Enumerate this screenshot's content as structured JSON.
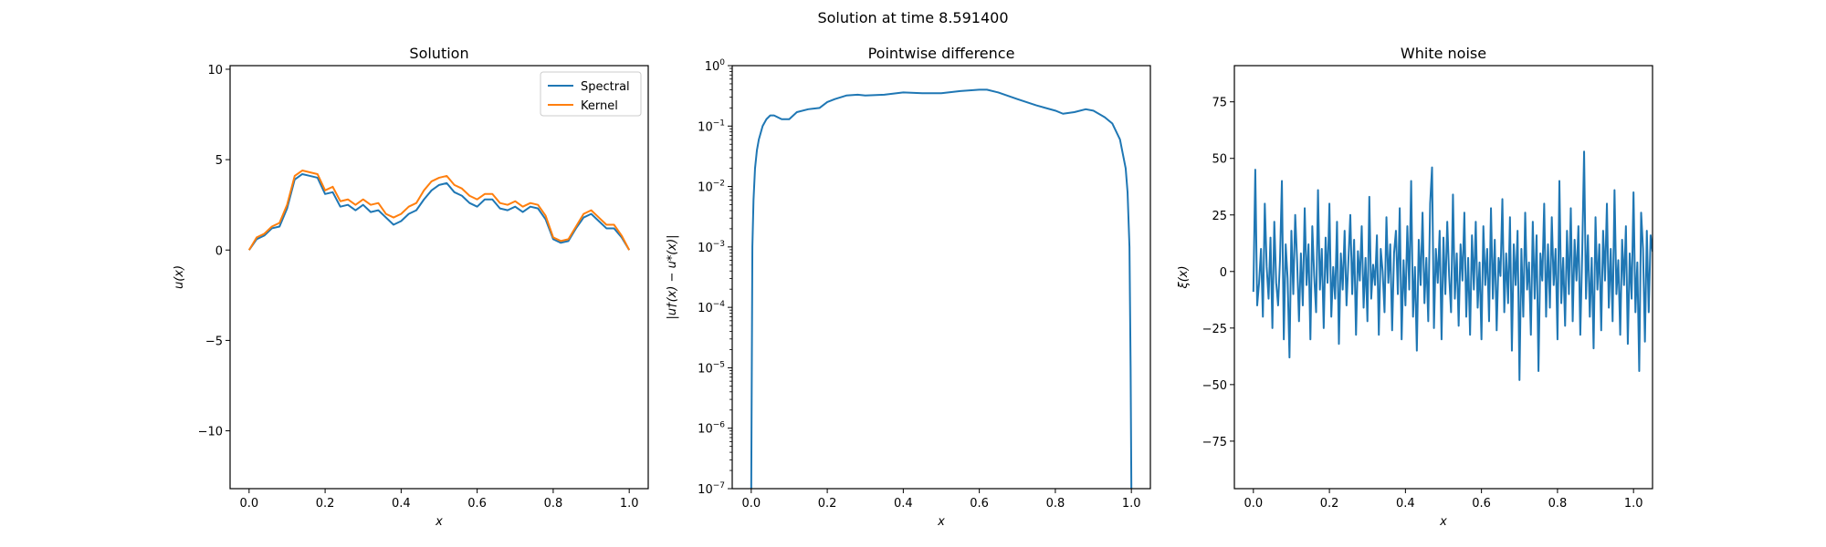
{
  "figure": {
    "suptitle": "Solution at time 8.591400"
  },
  "chart_data": [
    {
      "type": "line",
      "title": "Solution",
      "xlabel": "x",
      "ylabel": "u(x)",
      "xlim": [
        -0.05,
        1.05
      ],
      "ylim": [
        -13.2,
        10.2
      ],
      "xticks": [
        0.0,
        0.2,
        0.4,
        0.6,
        0.8,
        1.0
      ],
      "xtick_labels": [
        "0.0",
        "0.2",
        "0.4",
        "0.6",
        "0.8",
        "1.0"
      ],
      "yticks": [
        -10,
        -5,
        0,
        5,
        10
      ],
      "ytick_labels": [
        "−10",
        "−5",
        "0",
        "5",
        "10"
      ],
      "legend": {
        "loc": "upper right",
        "entries": [
          "Spectral",
          "Kernel"
        ]
      },
      "x": [
        0.0,
        0.02,
        0.04,
        0.06,
        0.08,
        0.1,
        0.12,
        0.14,
        0.16,
        0.18,
        0.2,
        0.22,
        0.24,
        0.26,
        0.28,
        0.3,
        0.32,
        0.34,
        0.36,
        0.38,
        0.4,
        0.42,
        0.44,
        0.46,
        0.48,
        0.5,
        0.52,
        0.54,
        0.56,
        0.58,
        0.6,
        0.62,
        0.64,
        0.66,
        0.68,
        0.7,
        0.72,
        0.74,
        0.76,
        0.78,
        0.8,
        0.82,
        0.84,
        0.86,
        0.88,
        0.9,
        0.92,
        0.94,
        0.96,
        0.98,
        1.0
      ],
      "series": [
        {
          "name": "Spectral",
          "color": "#1f77b4",
          "values": [
            0.0,
            0.6,
            0.8,
            1.2,
            1.3,
            2.3,
            3.9,
            4.2,
            4.1,
            4.0,
            3.1,
            3.2,
            2.4,
            2.5,
            2.2,
            2.5,
            2.1,
            2.2,
            1.8,
            1.4,
            1.6,
            2.0,
            2.2,
            2.8,
            3.3,
            3.6,
            3.7,
            3.2,
            3.0,
            2.6,
            2.4,
            2.8,
            2.8,
            2.3,
            2.2,
            2.4,
            2.1,
            2.4,
            2.3,
            1.7,
            0.6,
            0.4,
            0.5,
            1.2,
            1.8,
            2.0,
            1.6,
            1.2,
            1.2,
            0.7,
            0.0
          ]
        },
        {
          "name": "Kernel",
          "color": "#ff7f0e",
          "values": [
            0.0,
            0.7,
            0.9,
            1.3,
            1.5,
            2.5,
            4.1,
            4.4,
            4.3,
            4.2,
            3.3,
            3.5,
            2.7,
            2.8,
            2.5,
            2.8,
            2.5,
            2.6,
            2.0,
            1.8,
            2.0,
            2.4,
            2.6,
            3.3,
            3.8,
            4.0,
            4.1,
            3.6,
            3.4,
            3.0,
            2.8,
            3.1,
            3.1,
            2.6,
            2.5,
            2.7,
            2.4,
            2.6,
            2.5,
            1.9,
            0.7,
            0.5,
            0.6,
            1.3,
            2.0,
            2.2,
            1.8,
            1.4,
            1.4,
            0.8,
            0.0
          ]
        }
      ]
    },
    {
      "type": "line",
      "title": "Pointwise difference",
      "xlabel": "x",
      "ylabel": "|u†(x) − u*(x)|",
      "yscale": "log",
      "xlim": [
        -0.05,
        1.05
      ],
      "ylim": [
        1e-07,
        1
      ],
      "xticks": [
        0.0,
        0.2,
        0.4,
        0.6,
        0.8,
        1.0
      ],
      "xtick_labels": [
        "0.0",
        "0.2",
        "0.4",
        "0.6",
        "0.8",
        "1.0"
      ],
      "yticks": [
        1e-07,
        1e-06,
        1e-05,
        0.0001,
        0.001,
        0.01,
        0.1,
        1
      ],
      "ytick_exponents": [
        "−7",
        "−6",
        "−5",
        "−4",
        "−3",
        "−2",
        "−1",
        "0"
      ],
      "series": [
        {
          "color": "#1f77b4",
          "x": [
            0.0,
            0.003,
            0.006,
            0.01,
            0.015,
            0.02,
            0.03,
            0.04,
            0.05,
            0.06,
            0.08,
            0.1,
            0.12,
            0.15,
            0.18,
            0.2,
            0.22,
            0.25,
            0.28,
            0.3,
            0.35,
            0.4,
            0.45,
            0.5,
            0.55,
            0.6,
            0.62,
            0.65,
            0.7,
            0.75,
            0.8,
            0.82,
            0.85,
            0.88,
            0.9,
            0.93,
            0.95,
            0.97,
            0.985,
            0.99,
            0.995,
            0.998,
            1.0
          ],
          "values": [
            1e-07,
            0.001,
            0.006,
            0.02,
            0.04,
            0.06,
            0.1,
            0.13,
            0.15,
            0.15,
            0.13,
            0.13,
            0.17,
            0.19,
            0.2,
            0.25,
            0.28,
            0.32,
            0.33,
            0.32,
            0.33,
            0.36,
            0.35,
            0.35,
            0.38,
            0.4,
            0.4,
            0.36,
            0.28,
            0.22,
            0.18,
            0.16,
            0.17,
            0.19,
            0.18,
            0.14,
            0.11,
            0.06,
            0.02,
            0.008,
            0.001,
            1e-05,
            1e-07
          ]
        }
      ]
    },
    {
      "type": "line",
      "title": "White noise",
      "xlabel": "x",
      "ylabel": "ξ(x)",
      "xlim": [
        -0.05,
        1.05
      ],
      "ylim": [
        -96,
        91
      ],
      "xticks": [
        0.0,
        0.2,
        0.4,
        0.6,
        0.8,
        1.0
      ],
      "xtick_labels": [
        "0.0",
        "0.2",
        "0.4",
        "0.6",
        "0.8",
        "1.0"
      ],
      "yticks": [
        -75,
        -50,
        -25,
        0,
        25,
        50,
        75
      ],
      "ytick_labels": [
        "−75",
        "−50",
        "−25",
        "0",
        "25",
        "50",
        "75"
      ],
      "series": [
        {
          "color": "#1f77b4",
          "x_start": 0.0,
          "x_step": 0.005,
          "values": [
            -9,
            45,
            -15,
            -5,
            10,
            -20,
            30,
            2,
            -12,
            15,
            -25,
            22,
            -5,
            -15,
            5,
            40,
            -30,
            12,
            -3,
            -38,
            18,
            -10,
            25,
            5,
            -22,
            8,
            -15,
            28,
            -6,
            12,
            -30,
            20,
            -2,
            -18,
            36,
            -8,
            10,
            -25,
            15,
            -5,
            30,
            -20,
            2,
            -12,
            22,
            -32,
            8,
            -8,
            18,
            -15,
            5,
            25,
            -10,
            14,
            -28,
            9,
            -4,
            20,
            -16,
            6,
            -22,
            33,
            -12,
            3,
            -6,
            16,
            -28,
            10,
            0,
            -18,
            24,
            -5,
            12,
            -26,
            8,
            18,
            -10,
            28,
            -30,
            5,
            -15,
            20,
            -8,
            40,
            -20,
            2,
            -35,
            14,
            -6,
            26,
            -14,
            6,
            -22,
            30,
            46,
            -25,
            10,
            -5,
            18,
            -30,
            15,
            -10,
            22,
            -2,
            -18,
            34,
            -12,
            8,
            -24,
            12,
            -4,
            26,
            -20,
            6,
            -28,
            16,
            -8,
            22,
            -16,
            4,
            -30,
            20,
            -6,
            10,
            -22,
            28,
            -12,
            14,
            -26,
            6,
            -2,
            32,
            -18,
            8,
            -14,
            24,
            -35,
            12,
            -6,
            18,
            -48,
            10,
            -20,
            26,
            -8,
            4,
            -28,
            22,
            -12,
            16,
            -44,
            8,
            -4,
            30,
            -20,
            12,
            -16,
            24,
            -6,
            10,
            -30,
            40,
            -14,
            6,
            -24,
            18,
            -10,
            28,
            -22,
            14,
            -4,
            20,
            -28,
            8,
            53,
            -12,
            16,
            -20,
            6,
            -34,
            24,
            -8,
            12,
            -26,
            18,
            -4,
            30,
            -16,
            10,
            -22,
            36,
            -10,
            5,
            -28,
            14,
            -6,
            20,
            -32,
            8,
            -12,
            35,
            -18,
            4,
            -44,
            26,
            10,
            -31,
            18,
            -18,
            16,
            9,
            14
          ]
        }
      ]
    }
  ]
}
